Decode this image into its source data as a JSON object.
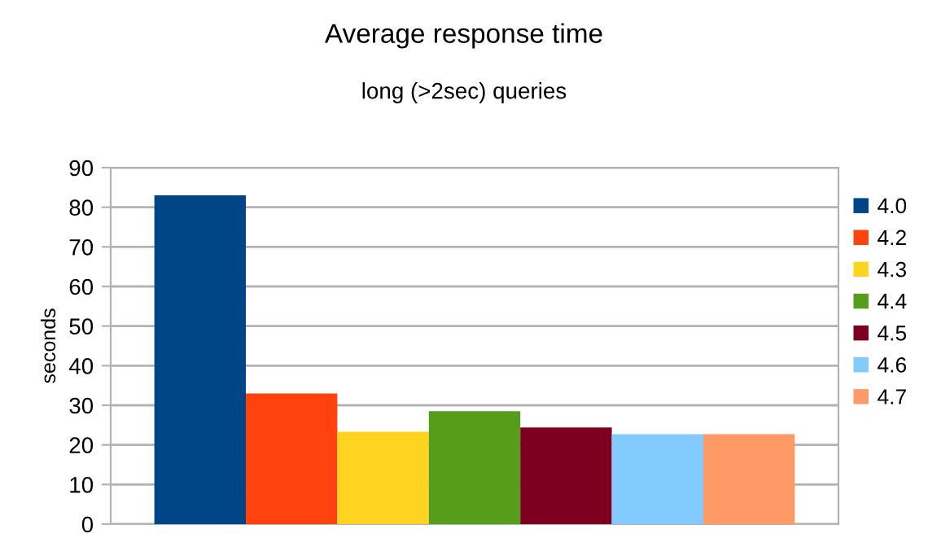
{
  "chart_data": {
    "type": "bar",
    "title": "Average response time",
    "subtitle": "long (>2sec) queries",
    "ylabel": "seconds",
    "categories": [
      null
    ],
    "series": [
      {
        "name": "4.0",
        "color": "#004586",
        "values": [
          83
        ]
      },
      {
        "name": "4.2",
        "color": "#ff420e",
        "values": [
          33
        ]
      },
      {
        "name": "4.3",
        "color": "#ffd320",
        "values": [
          23.3
        ]
      },
      {
        "name": "4.4",
        "color": "#579d1c",
        "values": [
          28.5
        ]
      },
      {
        "name": "4.5",
        "color": "#7e0021",
        "values": [
          24.4
        ]
      },
      {
        "name": "4.6",
        "color": "#83caff",
        "values": [
          22.7
        ]
      },
      {
        "name": "4.7",
        "color": "#ff9966",
        "values": [
          22.7
        ]
      }
    ],
    "ylim": [
      0,
      90
    ],
    "yticks": [
      0,
      10,
      20,
      30,
      40,
      50,
      60,
      70,
      80,
      90
    ],
    "grid": "y",
    "legend": "right"
  }
}
